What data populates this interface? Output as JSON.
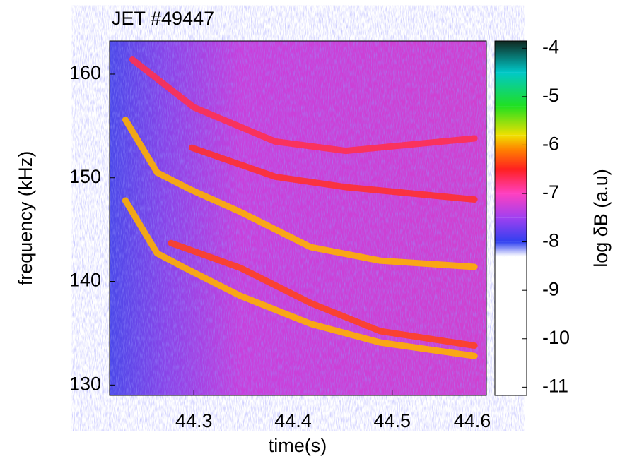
{
  "chart_data": {
    "type": "spectrogram",
    "title": "JET #49447",
    "xlabel": "time(s)",
    "ylabel": "frequency (kHz)",
    "colorbar_label": "log δB (a.u)",
    "xlim": [
      44.215,
      44.595
    ],
    "xticks": [
      44.3,
      44.4,
      44.5,
      44.6
    ],
    "ylim": [
      129,
      163.2
    ],
    "yticks": [
      130,
      140,
      150,
      160
    ],
    "clim": [
      -11.17,
      -3.85
    ],
    "cticks": [
      -4,
      -5,
      -6,
      -7,
      -8,
      -9,
      -10,
      -11
    ],
    "colormap": [
      {
        "value": -3.85,
        "color": "#102820"
      },
      {
        "value": -4.5,
        "color": "#00c8c8"
      },
      {
        "value": -5.2,
        "color": "#20e020"
      },
      {
        "value": -5.8,
        "color": "#f0e000"
      },
      {
        "value": -6.1,
        "color": "#ff8000"
      },
      {
        "value": -6.5,
        "color": "#ff2020"
      },
      {
        "value": -7,
        "color": "#ff40c0"
      },
      {
        "value": -7.5,
        "color": "#a040f0"
      },
      {
        "value": -8,
        "color": "#3040f0"
      },
      {
        "value": -8.3,
        "color": "#ffffff"
      },
      {
        "value": -11.17,
        "color": "#ffffff"
      }
    ],
    "series": [
      {
        "color": "#ff3050",
        "x": [
          44.238,
          44.3,
          44.382,
          44.453,
          44.583
        ],
        "values": [
          161.4,
          156.8,
          153.5,
          152.6,
          153.8
        ]
      },
      {
        "color": "#ff3030",
        "x": [
          44.298,
          44.382,
          44.453,
          44.583
        ],
        "values": [
          152.9,
          150.1,
          149.1,
          147.9
        ]
      },
      {
        "color": "#ffb000",
        "x": [
          44.231,
          44.263,
          44.298,
          44.347,
          44.418,
          44.488,
          44.583
        ],
        "values": [
          155.6,
          150.5,
          148.8,
          146.7,
          143.3,
          142,
          141.4
        ]
      },
      {
        "color": "#ff4020",
        "x": [
          44.277,
          44.347,
          44.418,
          44.488,
          44.583
        ],
        "values": [
          143.7,
          141.3,
          137.9,
          135.2,
          133.8
        ]
      },
      {
        "color": "#ffb000",
        "x": [
          44.231,
          44.263,
          44.291,
          44.347,
          44.418,
          44.488,
          44.583
        ],
        "values": [
          147.8,
          142.7,
          141.3,
          138.6,
          135.9,
          134.1,
          132.8
        ]
      }
    ]
  }
}
